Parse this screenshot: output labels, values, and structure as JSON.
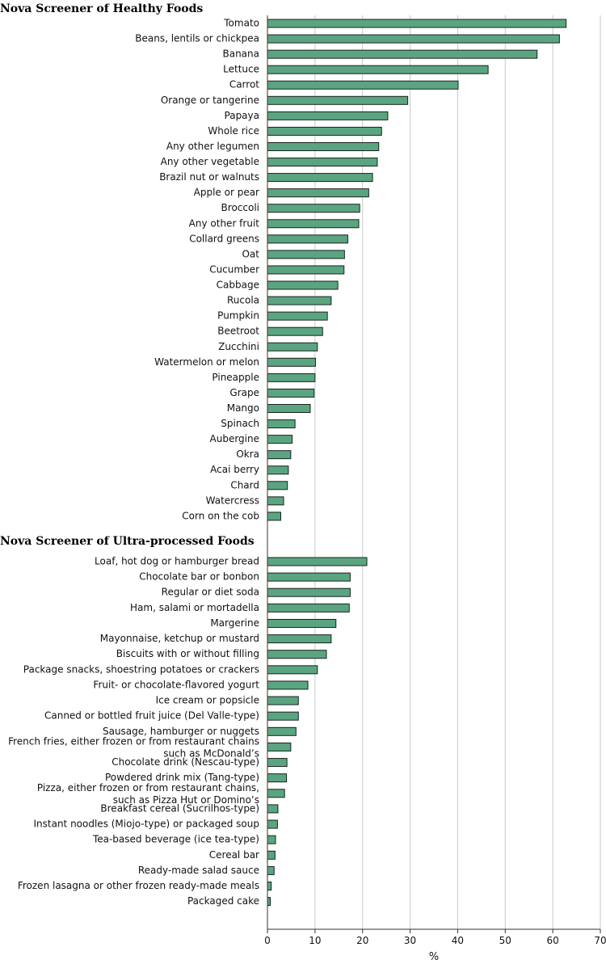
{
  "chart_data": {
    "type": "bar",
    "orientation": "horizontal",
    "xlabel": "%",
    "xlim": [
      0,
      70
    ],
    "xticks": [
      0,
      10,
      20,
      30,
      40,
      50,
      60,
      70
    ],
    "grid": true,
    "bar_color": "#5aa580",
    "groups": [
      {
        "title": "Nova Screener of Healthy Foods",
        "categories": [
          "Tomato",
          "Beans, lentils or chickpea",
          "Banana",
          "Lettuce",
          "Carrot",
          "Orange or tangerine",
          "Papaya",
          "Whole rice",
          "Any other legumen",
          "Any other vegetable",
          "Brazil nut or walnuts",
          "Apple or pear",
          "Broccoli",
          "Any other fruit",
          "Collard greens",
          "Oat",
          "Cucumber",
          "Cabbage",
          "Rucola",
          "Pumpkin",
          "Beetroot",
          "Zucchini",
          "Watermelon or melon",
          "Pineapple",
          "Grape",
          "Mango",
          "Spinach",
          "Aubergine",
          "Okra",
          "Acai berry",
          "Chard",
          "Watercress",
          "Corn on the cob"
        ],
        "values": [
          62.8,
          61.4,
          56.7,
          46.4,
          40.1,
          29.5,
          25.3,
          24.0,
          23.4,
          23.1,
          22.1,
          21.3,
          19.4,
          19.2,
          16.9,
          16.2,
          16.1,
          14.8,
          13.4,
          12.6,
          11.6,
          10.5,
          10.1,
          10.0,
          9.8,
          9.0,
          5.8,
          5.2,
          4.9,
          4.4,
          4.2,
          3.4,
          2.8
        ]
      },
      {
        "title": "Nova Screener of Ultra-processed Foods",
        "categories": [
          "Loaf, hot dog or hamburger bread",
          "Chocolate bar or bonbon",
          "Regular or diet soda",
          "Ham, salami or mortadella",
          "Margerine",
          "Mayonnaise, ketchup or mustard",
          "Biscuits with or without filling",
          "Package snacks, shoestring potatoes or crackers",
          "Fruit- or chocolate-flavored yogurt",
          "Ice cream or popsicle",
          "Canned or bottled fruit juice (Del Valle-type)",
          "Sausage, hamburger or nuggets",
          "French fries, either frozen or from restaurant chains|such as McDonald’s",
          "Chocolate drink (Nescau-type)",
          "Powdered drink mix (Tang-type)",
          "Pizza, either frozen or from restaurant chains,|such as Pizza Hut or Domino’s",
          "Breakfast cereal (Sucrilhos-type)",
          "Instant noodles (Miojo-type) or packaged soup",
          "Tea-based beverage (ice tea-type)",
          "Cereal bar",
          "Ready-made salad sauce",
          "Frozen lasagna or other frozen ready-made meals",
          "Packaged cake"
        ],
        "values": [
          20.9,
          17.4,
          17.4,
          17.2,
          14.4,
          13.4,
          12.4,
          10.5,
          8.5,
          6.5,
          6.5,
          6.0,
          4.9,
          4.1,
          4.0,
          3.6,
          2.2,
          2.1,
          1.7,
          1.6,
          1.4,
          0.8,
          0.6
        ]
      }
    ]
  }
}
